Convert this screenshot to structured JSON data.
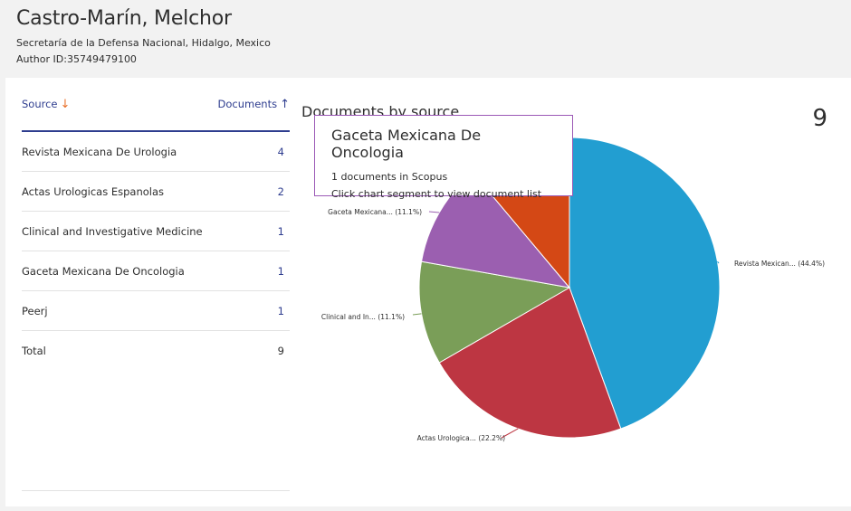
{
  "author": {
    "name": "Castro-Marín, Melchor",
    "affiliation": "Secretaría de la Defensa Nacional, Hidalgo, Mexico",
    "id_label": "Author ID:35749479100"
  },
  "table": {
    "col_source": "Source",
    "col_documents": "Documents",
    "rows": [
      {
        "source": "Revista Mexicana De Urologia",
        "count": "4"
      },
      {
        "source": "Actas Urologicas Espanolas",
        "count": "2"
      },
      {
        "source": "Clinical and Investigative Medicine",
        "count": "1"
      },
      {
        "source": "Gaceta Mexicana De Oncologia",
        "count": "1"
      },
      {
        "source": "Peerj",
        "count": "1"
      }
    ],
    "total_label": "Total",
    "total_value": "9"
  },
  "chart": {
    "title": "Documents by source",
    "total": "9"
  },
  "tooltip": {
    "title": "Gaceta Mexicana De Oncologia",
    "line1": "1 documents in Scopus",
    "line2": "Click chart segment to view document list"
  },
  "chart_data": {
    "type": "pie",
    "title": "Documents by source",
    "slices": [
      {
        "label": "Revista Mexican...",
        "pct_label": "(44.4%)",
        "value": 4,
        "color": "#229ed1"
      },
      {
        "label": "Actas Urologica...",
        "pct_label": "(22.2%)",
        "value": 2,
        "color": "#bd3642"
      },
      {
        "label": "Clinical and In...",
        "pct_label": "(11.1%)",
        "value": 1,
        "color": "#7a9e58"
      },
      {
        "label": "Gaceta Mexicana...",
        "pct_label": "(11.1%)",
        "value": 1,
        "color": "#9b5fb0"
      },
      {
        "label": "",
        "pct_label": "",
        "value": 1,
        "color": "#d44815"
      }
    ]
  }
}
